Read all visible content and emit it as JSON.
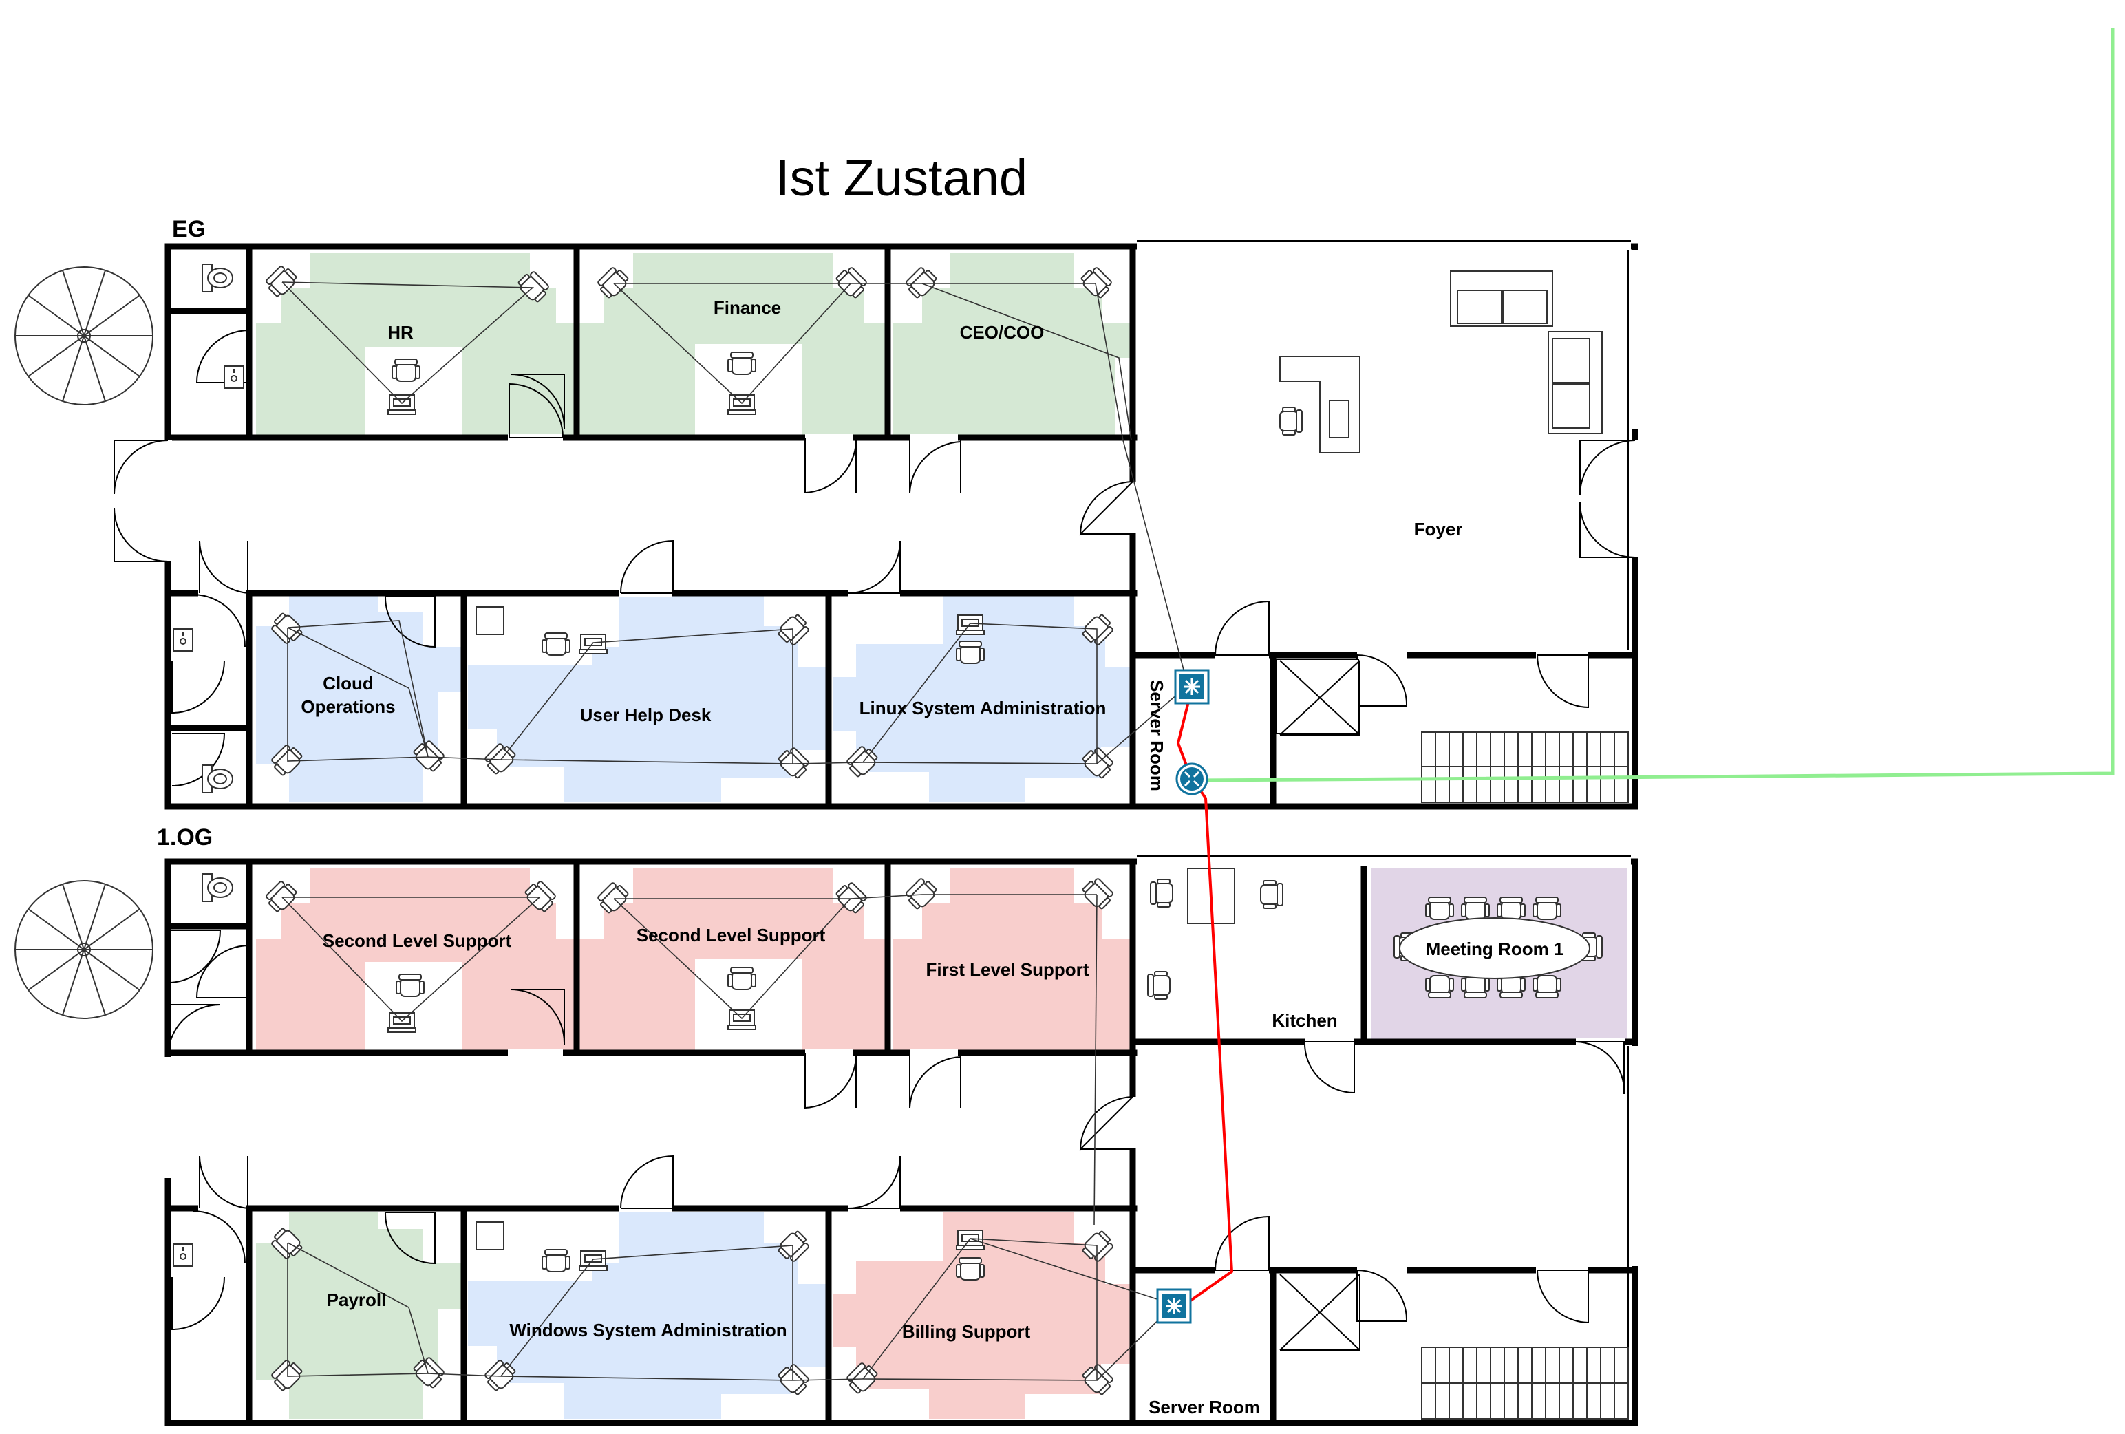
{
  "title": "Ist Zustand",
  "floors": {
    "eg": "EG",
    "og1": "1.OG"
  },
  "colors": {
    "green": "#d5e8d4",
    "blue": "#dae8fc",
    "red": "#f8cecc",
    "purple": "#e1d5e7",
    "fiber": "#90ee90",
    "uplink": "#ff0000",
    "switch": "#10739e"
  },
  "rooms": {
    "hr": "HR",
    "finance": "Finance",
    "ceo": "CEO/COO",
    "foyer": "Foyer",
    "cloud_ops_1": "Cloud",
    "cloud_ops_2": "Operations",
    "user_help_desk": "User Help Desk",
    "linux_admin": "Linux System Administration",
    "server_room_eg": "Server Room",
    "second_level_1": "Second Level Support",
    "second_level_2": "Second Level Support",
    "first_level": "First Level Support",
    "kitchen": "Kitchen",
    "meeting_room": "Meeting Room 1",
    "payroll": "Payroll",
    "windows_admin": "Windows System Administration",
    "billing": "Billing Support",
    "server_room_og": "Server Room"
  },
  "icons": {
    "switch": "network-switch-icon",
    "router": "router-icon",
    "chair": "chair-icon",
    "desk": "desk-icon",
    "computer": "computer-icon",
    "toilet": "toilet-icon",
    "sink": "sink-icon",
    "stairs": "stairs-icon",
    "spiral_stairs": "spiral-staircase-icon",
    "sofa": "sofa-icon",
    "printer": "printer-icon"
  }
}
